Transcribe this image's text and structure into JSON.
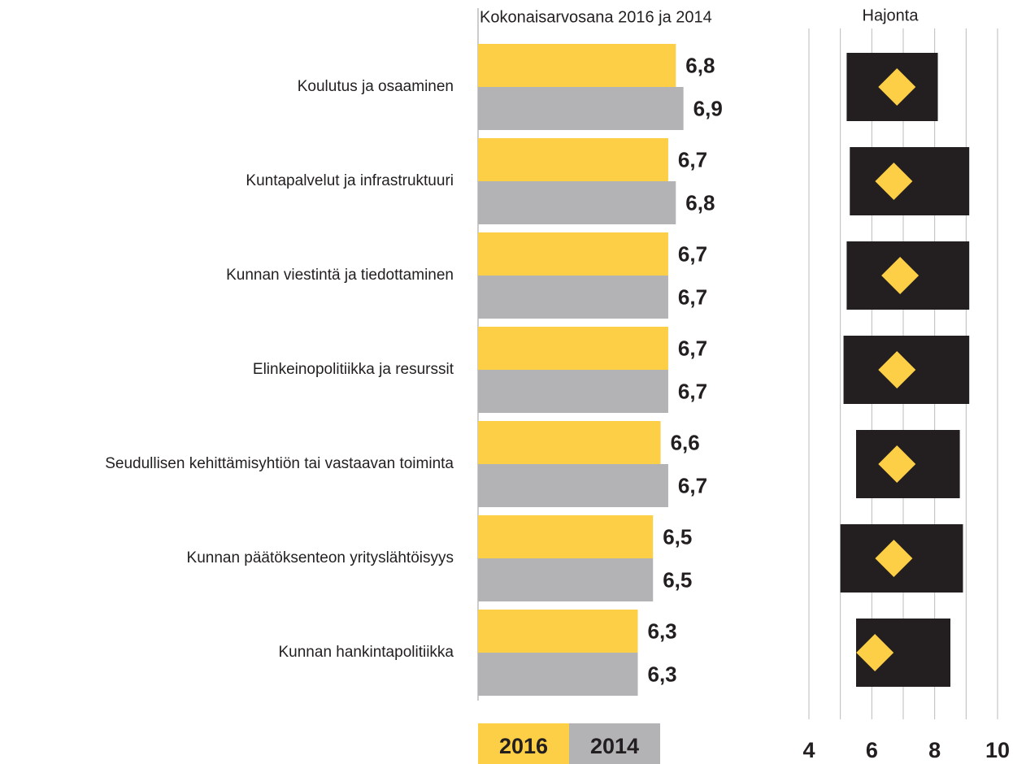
{
  "chart_data": [
    {
      "type": "bar",
      "title": "Kokonaisarvosana 2016 ja 2014",
      "categories": [
        "Koulutus ja osaaminen",
        "Kuntapalvelut ja infrastruktuuri",
        "Kunnan viestintä ja tiedottaminen",
        "Elinkeinopolitiikka ja resurssit",
        "Seudullisen kehittämisyhtiön tai vastaavan toiminta",
        "Kunnan päätöksenteon yrityslähtöisyys",
        "Kunnan hankintapolitiikka"
      ],
      "series": [
        {
          "name": "2016",
          "color": "#fccf46",
          "values": [
            6.8,
            6.7,
            6.7,
            6.7,
            6.6,
            6.5,
            6.3
          ],
          "value_labels": [
            "6,8",
            "6,7",
            "6,7",
            "6,7",
            "6,6",
            "6,5",
            "6,3"
          ]
        },
        {
          "name": "2014",
          "color": "#b3b3b5",
          "values": [
            6.9,
            6.8,
            6.7,
            6.7,
            6.7,
            6.5,
            6.3
          ],
          "value_labels": [
            "6,9",
            "6,8",
            "6,7",
            "6,7",
            "6,7",
            "6,5",
            "6,3"
          ]
        }
      ],
      "xlim": [
        4.2,
        7.0
      ]
    },
    {
      "type": "range",
      "title": "Hajonta",
      "low": [
        5.2,
        5.3,
        5.2,
        5.1,
        5.5,
        5.0,
        5.5
      ],
      "high": [
        8.1,
        9.1,
        9.1,
        9.1,
        8.8,
        8.9,
        8.5
      ],
      "values": [
        6.8,
        6.7,
        6.9,
        6.8,
        6.8,
        6.7,
        6.1
      ],
      "box_color": "#231f20",
      "color": "#fccf46",
      "xlim": [
        4,
        10
      ],
      "xticks": [
        4,
        6,
        8,
        10
      ],
      "minor_xticks": [
        5,
        7,
        9
      ],
      "grid": true
    }
  ]
}
